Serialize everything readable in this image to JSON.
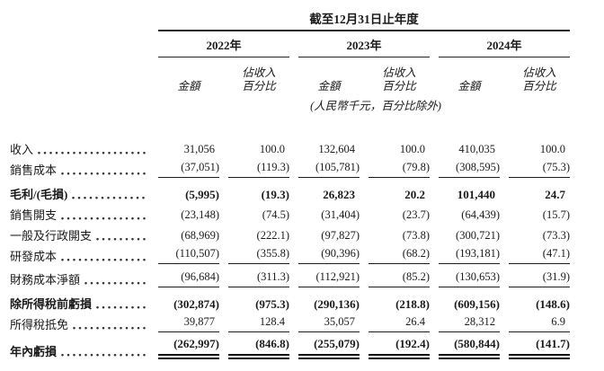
{
  "document": {
    "period_title": "截至12月31日止年度",
    "currency_note": "(人民幣千元，百分比除外)",
    "year_groups": [
      {
        "key": "2022",
        "year": "2022年"
      },
      {
        "key": "2023",
        "year": "2023年"
      },
      {
        "key": "2024",
        "year": "2024年"
      }
    ],
    "column_headers": {
      "amount": "金額",
      "pct_line1": "佔收入",
      "pct_line2": "百分比"
    },
    "rows": [
      {
        "key": "revenue",
        "label": "收入",
        "style": "normal",
        "rule": "none",
        "values": [
          "31,056",
          "100.0",
          "132,604",
          "100.0",
          "410,035",
          "100.0"
        ]
      },
      {
        "key": "cost-of-sales",
        "label": "銷售成本",
        "style": "normal",
        "rule": "single",
        "values": [
          "(37,051)",
          "(119.3)",
          "(105,781)",
          "(79.8)",
          "(308,595)",
          "(75.3)"
        ]
      },
      {
        "key": "gross-profit-loss",
        "label": "毛利/(毛損)",
        "style": "bold",
        "rule": "none",
        "values": [
          "(5,995)",
          "(19.3)",
          "26,823",
          "20.2",
          "101,440",
          "24.7"
        ]
      },
      {
        "key": "selling-expenses",
        "label": "銷售開支",
        "style": "normal",
        "rule": "none",
        "values": [
          "(23,148)",
          "(74.5)",
          "(31,404)",
          "(23.7)",
          "(64,439)",
          "(15.7)"
        ]
      },
      {
        "key": "general-admin-expenses",
        "label": "一般及行政開支",
        "style": "normal",
        "rule": "none",
        "values": [
          "(68,969)",
          "(222.1)",
          "(97,827)",
          "(73.8)",
          "(300,721)",
          "(73.3)"
        ]
      },
      {
        "key": "rd-costs",
        "label": "研發成本",
        "style": "normal",
        "rule": "single",
        "values": [
          "(110,507)",
          "(355.8)",
          "(90,396)",
          "(68.2)",
          "(193,181)",
          "(47.1)"
        ]
      },
      {
        "key": "net-finance-costs",
        "label": "財務成本淨額",
        "style": "normal",
        "rule": "single",
        "values": [
          "(96,684)",
          "(311.3)",
          "(112,921)",
          "(85.2)",
          "(130,653)",
          "(31.9)"
        ]
      },
      {
        "key": "loss-before-income-tax",
        "label": "除所得稅前虧損",
        "style": "bold",
        "rule": "none",
        "values": [
          "(302,874)",
          "(975.3)",
          "(290,136)",
          "(218.8)",
          "(609,156)",
          "(148.6)"
        ]
      },
      {
        "key": "income-tax-credit",
        "label": "所得稅抵免",
        "style": "normal",
        "rule": "single",
        "values": [
          "39,877",
          "128.4",
          "35,057",
          "26.4",
          "28,312",
          "6.9"
        ]
      },
      {
        "key": "loss-for-the-year",
        "label": "年內虧損",
        "style": "bold",
        "rule": "double",
        "values": [
          "(262,997)",
          "(846.8)",
          "(255,079)",
          "(192.4)",
          "(580,844)",
          "(141.7)"
        ]
      }
    ]
  }
}
